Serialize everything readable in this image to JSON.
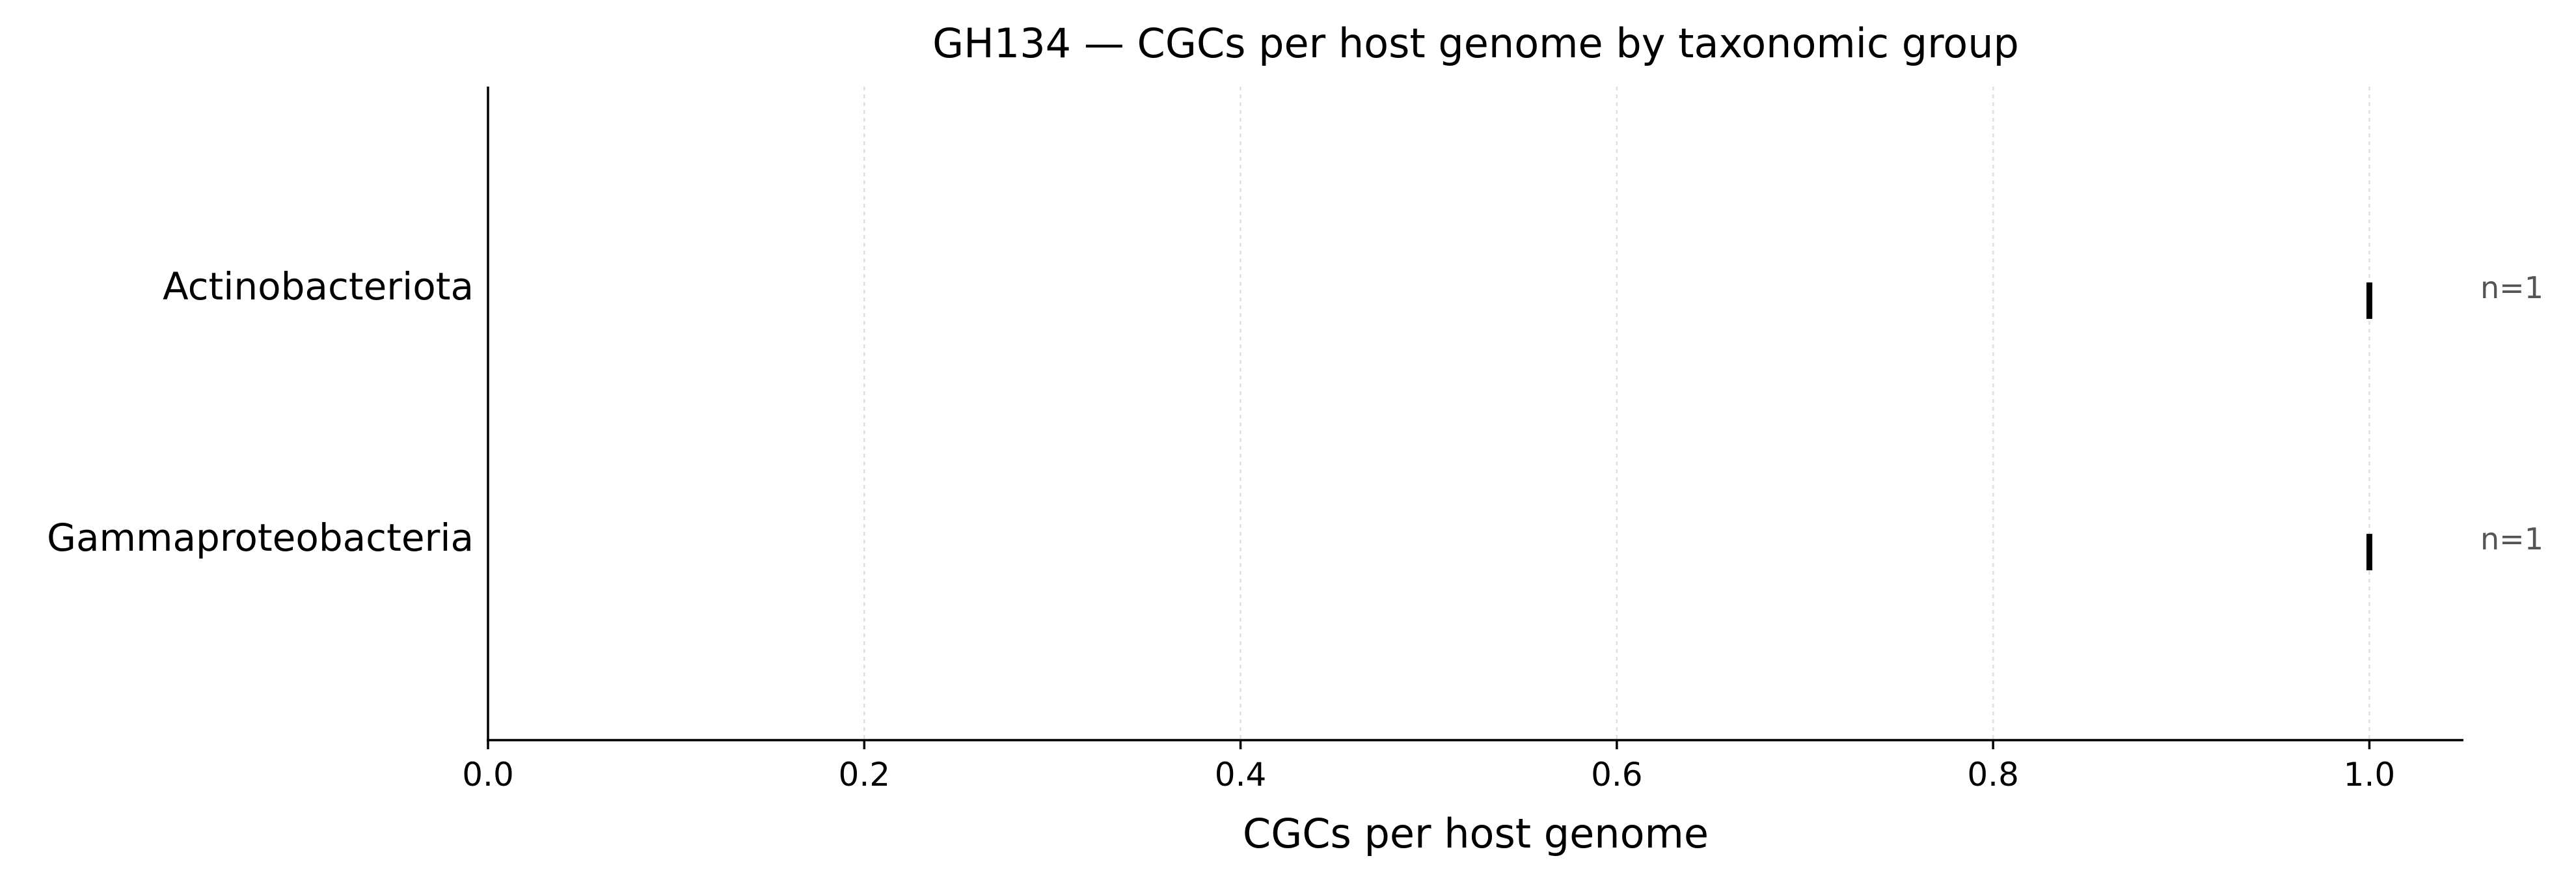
{
  "chart_data": {
    "type": "scatter",
    "title": "GH134 — CGCs per host genome by taxonomic group",
    "xlabel": "CGCs per host genome",
    "ylabel": "",
    "xlim": [
      0,
      1.05
    ],
    "xticks": [
      0.0,
      0.2,
      0.4,
      0.6,
      0.8,
      1.0
    ],
    "xtick_labels": [
      "0.0",
      "0.2",
      "0.4",
      "0.6",
      "0.8",
      "1.0"
    ],
    "grid": "vertical dashed",
    "categories": [
      "Actinobacteriota",
      "Gammaproteobacteria"
    ],
    "values": [
      1.0,
      1.0
    ],
    "annotations": [
      "n=1",
      "n=1"
    ],
    "colors": {
      "mark": "#000000",
      "grid": "#e0e0e0",
      "annotation": "#555555"
    }
  }
}
